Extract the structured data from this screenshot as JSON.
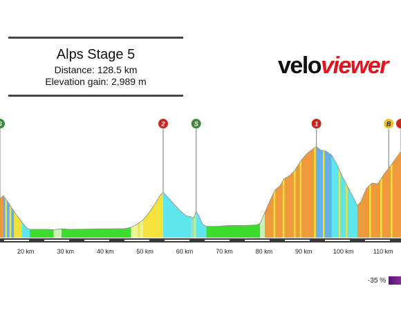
{
  "header": {
    "title": "Alps Stage 5",
    "distance": "Distance: 128.5 km",
    "elevation_gain": "Elevation gain: 2,989 m"
  },
  "logo": {
    "part1": "velo",
    "part2": "viewer"
  },
  "legend": {
    "label": "-35 %"
  },
  "colors": {
    "flat_green": "#3ddd2e",
    "descent_cyan": "#5ee6ee",
    "climb_orange": "#ef9a3a",
    "climb_yellow": "#f2e23a",
    "base_bar": "#3a3a3a",
    "marker_red": "#c8271f",
    "marker_green": "#3d8a3a",
    "marker_yellow": "#f0c020"
  },
  "chart_data": {
    "type": "area",
    "title": "Alps Stage 5",
    "xlabel": "",
    "ylabel": "",
    "x_unit": "km",
    "x_ticks": [
      20,
      30,
      40,
      50,
      60,
      70,
      80,
      90,
      100,
      110
    ],
    "x_tick_labels": [
      "20 km",
      "30 km",
      "40 km",
      "50 km",
      "60 km",
      "70 km",
      "80 km",
      "90 km",
      "100 km",
      "110 km"
    ],
    "xlim": [
      13.5,
      114.5
    ],
    "ylim_relative": [
      0,
      1
    ],
    "series": [
      {
        "values_relative": [
          {
            "km": 13.5,
            "e": 0.388
          },
          {
            "km": 14.3,
            "e": 0.422
          },
          {
            "km": 15.5,
            "e": 0.358
          },
          {
            "km": 16.8,
            "e": 0.278
          },
          {
            "km": 18.2,
            "e": 0.198
          },
          {
            "km": 19.3,
            "e": 0.143
          },
          {
            "km": 20.2,
            "e": 0.097
          },
          {
            "km": 21.0,
            "e": 0.084
          },
          {
            "km": 25.0,
            "e": 0.084
          },
          {
            "km": 27.0,
            "e": 0.08
          },
          {
            "km": 29.0,
            "e": 0.088
          },
          {
            "km": 31.0,
            "e": 0.084
          },
          {
            "km": 34.0,
            "e": 0.085
          },
          {
            "km": 38.0,
            "e": 0.088
          },
          {
            "km": 42.0,
            "e": 0.089
          },
          {
            "km": 45.0,
            "e": 0.091
          },
          {
            "km": 46.5,
            "e": 0.104
          },
          {
            "km": 48.0,
            "e": 0.135
          },
          {
            "km": 49.5,
            "e": 0.177
          },
          {
            "km": 51.0,
            "e": 0.249
          },
          {
            "km": 52.5,
            "e": 0.338
          },
          {
            "km": 53.8,
            "e": 0.422
          },
          {
            "km": 54.6,
            "e": 0.456
          },
          {
            "km": 55.8,
            "e": 0.405
          },
          {
            "km": 57.3,
            "e": 0.338
          },
          {
            "km": 58.9,
            "e": 0.27
          },
          {
            "km": 60.4,
            "e": 0.219
          },
          {
            "km": 61.5,
            "e": 0.211
          },
          {
            "km": 62.3,
            "e": 0.198
          },
          {
            "km": 62.9,
            "e": 0.262
          },
          {
            "km": 63.6,
            "e": 0.219
          },
          {
            "km": 64.5,
            "e": 0.135
          },
          {
            "km": 65.5,
            "e": 0.114
          },
          {
            "km": 68.0,
            "e": 0.114
          },
          {
            "km": 71.0,
            "e": 0.122
          },
          {
            "km": 75.0,
            "e": 0.122
          },
          {
            "km": 78.0,
            "e": 0.127
          },
          {
            "km": 79.0,
            "e": 0.143
          },
          {
            "km": 80.2,
            "e": 0.253
          },
          {
            "km": 81.5,
            "e": 0.371
          },
          {
            "km": 82.8,
            "e": 0.481
          },
          {
            "km": 84.1,
            "e": 0.523
          },
          {
            "km": 85.0,
            "e": 0.591
          },
          {
            "km": 86.5,
            "e": 0.624
          },
          {
            "km": 87.9,
            "e": 0.683
          },
          {
            "km": 89.3,
            "e": 0.776
          },
          {
            "km": 90.7,
            "e": 0.84
          },
          {
            "km": 92.1,
            "e": 0.886
          },
          {
            "km": 93.2,
            "e": 0.916
          },
          {
            "km": 94.2,
            "e": 0.882
          },
          {
            "km": 95.6,
            "e": 0.869
          },
          {
            "km": 97.0,
            "e": 0.831
          },
          {
            "km": 98.4,
            "e": 0.734
          },
          {
            "km": 99.8,
            "e": 0.61
          },
          {
            "km": 101.3,
            "e": 0.494
          },
          {
            "km": 102.7,
            "e": 0.388
          },
          {
            "km": 103.5,
            "e": 0.321
          },
          {
            "km": 104.4,
            "e": 0.363
          },
          {
            "km": 105.8,
            "e": 0.494
          },
          {
            "km": 107.2,
            "e": 0.548
          },
          {
            "km": 108.6,
            "e": 0.54
          },
          {
            "km": 110.0,
            "e": 0.624
          },
          {
            "km": 111.4,
            "e": 0.7
          },
          {
            "km": 112.8,
            "e": 0.772
          },
          {
            "km": 114.5,
            "e": 0.87
          }
        ]
      }
    ],
    "gradient_segments": [
      {
        "from": 13.5,
        "to": 14.3,
        "color": "#ef9a3a"
      },
      {
        "from": 14.3,
        "to": 17.0,
        "color": "#66b0e8"
      },
      {
        "from": 17.0,
        "to": 19.0,
        "color": "#f2e23a"
      },
      {
        "from": 19.0,
        "to": 21.0,
        "color": "#5ee6ee"
      },
      {
        "from": 21.0,
        "to": 27.0,
        "color": "#3ddd2e"
      },
      {
        "from": 27.0,
        "to": 29.0,
        "color": "#c9f0b4"
      },
      {
        "from": 29.0,
        "to": 46.5,
        "color": "#3ddd2e"
      },
      {
        "from": 46.5,
        "to": 49.5,
        "color": "#e8f59a"
      },
      {
        "from": 49.5,
        "to": 54.6,
        "color": "#f2e23a"
      },
      {
        "from": 54.6,
        "to": 61.5,
        "color": "#5ee6ee"
      },
      {
        "from": 61.5,
        "to": 62.3,
        "color": "#8ce0d0"
      },
      {
        "from": 62.3,
        "to": 62.9,
        "color": "#b8ec9a"
      },
      {
        "from": 62.9,
        "to": 65.5,
        "color": "#5ee6ee"
      },
      {
        "from": 65.5,
        "to": 79.0,
        "color": "#3ddd2e"
      },
      {
        "from": 79.0,
        "to": 80.2,
        "color": "#c9f0b4"
      },
      {
        "from": 80.2,
        "to": 93.2,
        "color": "#ef9a3a"
      },
      {
        "from": 93.2,
        "to": 97.0,
        "color": "#66b0e8"
      },
      {
        "from": 97.0,
        "to": 103.5,
        "color": "#5ee6ee"
      },
      {
        "from": 103.5,
        "to": 114.5,
        "color": "#ef9a3a"
      }
    ],
    "stripe_kms": [
      14.8,
      15.9,
      48.3,
      50.7,
      52.1,
      53.2,
      82.4,
      84.7,
      87.5,
      89.0,
      92.6,
      94.8,
      98.8,
      100.6,
      106.5,
      109.3,
      111.9
    ],
    "markers": [
      {
        "label": "S",
        "km": 13.5,
        "color": "#3d8a3a",
        "text_color": "#ffffff"
      },
      {
        "label": "2",
        "km": 54.6,
        "color": "#c8271f",
        "text_color": "#ffffff"
      },
      {
        "label": "S",
        "km": 62.9,
        "color": "#3d8a3a",
        "text_color": "#ffffff"
      },
      {
        "label": "1",
        "km": 93.2,
        "color": "#c8271f",
        "text_color": "#ffffff"
      },
      {
        "label": "B",
        "km": 111.4,
        "color": "#f0c020",
        "text_color": "#222222"
      },
      {
        "label": "",
        "km": 114.5,
        "color": "#c8271f",
        "text_color": "#ffffff"
      }
    ]
  }
}
